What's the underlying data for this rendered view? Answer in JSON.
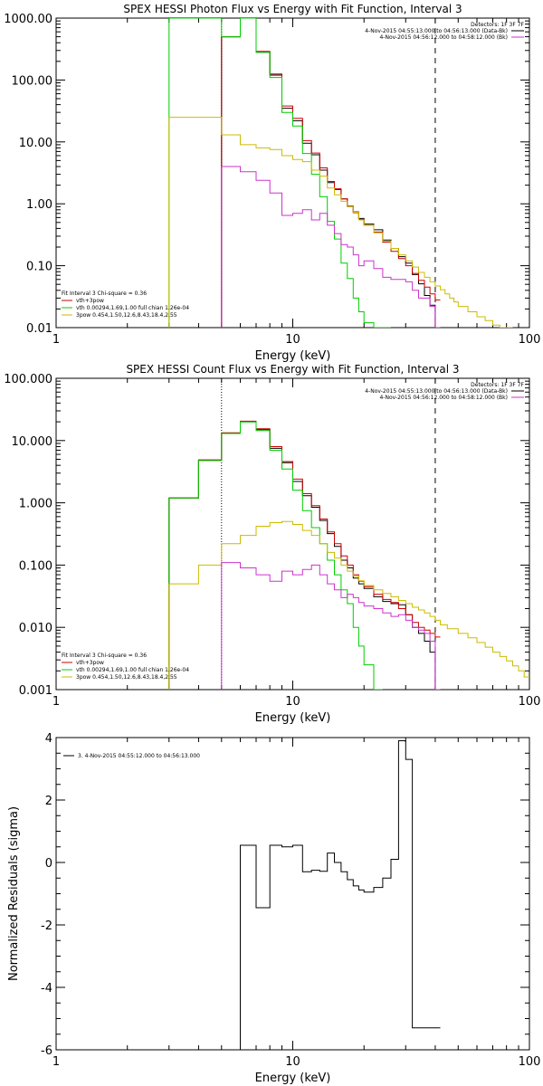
{
  "panels": [
    {
      "key": "photon",
      "type": "line",
      "title": "SPEX HESSI Photon Flux vs Energy with Fit Function, Interval 3",
      "xlabel": "Energy (keV)",
      "ylabel": "",
      "xscale": "log",
      "yscale": "log",
      "xlim": [
        1,
        100
      ],
      "ylim": [
        0.01,
        1000
      ],
      "xticks": [
        1,
        10,
        100
      ],
      "xtick_labels": [
        "1",
        "10",
        "100"
      ],
      "yticks": [
        0.01,
        0.1,
        1,
        10,
        100,
        1000
      ],
      "ytick_labels": [
        "0.01",
        "0.10",
        "1.00",
        "10.00",
        "100.00",
        "1000.00"
      ],
      "vlines": [
        {
          "x": 5.0,
          "style": "dotted",
          "color": "#000000"
        },
        {
          "x": 40.0,
          "style": "dashed",
          "color": "#000000"
        }
      ],
      "legend_tr": [
        "Detectors: 1F 3F 7F",
        "4-Nov-2015 04:55:13.000 to 04:56:13.000 (Data-Bk)",
        "4-Nov-2015 04:56:12.000 to 04:58:12.000 (Bk)"
      ],
      "legend_tr_colors": [
        "",
        "#000000",
        "#cc33cc"
      ],
      "legend_bl": [
        "Fit Interval 3   Chi-square = 0.36",
        "vth+3pow",
        "vth 0.00294,1.69,1.00  full chian 1.26e-04",
        "3pow 0.454,1.50,12.6,8.43,18.4,2.55"
      ],
      "legend_bl_colors": [
        "",
        "#cc0000",
        "#00cc00",
        "#ccbb00"
      ],
      "series": [
        {
          "name": "Data-Bk",
          "color": "#000000",
          "x": [
            5,
            6,
            7,
            8,
            9,
            10,
            11,
            12,
            13,
            14,
            15,
            16,
            17,
            18,
            19,
            20,
            22,
            24,
            26,
            28,
            30,
            32,
            34,
            36,
            38,
            40
          ],
          "y": [
            500,
            1000,
            280,
            120,
            35,
            22,
            9.5,
            6.2,
            3.5,
            2.2,
            1.7,
            1.2,
            0.92,
            0.74,
            0.58,
            0.47,
            0.38,
            0.26,
            0.19,
            0.14,
            0.11,
            0.072,
            0.051,
            0.033,
            0.023,
            0.01
          ]
        },
        {
          "name": "vth+3pow",
          "color": "#cc0000",
          "x": [
            5,
            6,
            7,
            8,
            9,
            10,
            11,
            12,
            13,
            14,
            15,
            16,
            17,
            18,
            19,
            20,
            22,
            24,
            26,
            28,
            30,
            32,
            34,
            36,
            38,
            40
          ],
          "y": [
            500,
            1000,
            290,
            125,
            38,
            24,
            10.5,
            6.6,
            3.8,
            2.3,
            1.75,
            1.2,
            0.9,
            0.72,
            0.56,
            0.45,
            0.35,
            0.24,
            0.17,
            0.13,
            0.1,
            0.075,
            0.058,
            0.045,
            0.035,
            0.028
          ]
        },
        {
          "name": "vth",
          "color": "#00cc00",
          "x": [
            3,
            5,
            6,
            7,
            8,
            9,
            10,
            11,
            12,
            13,
            14,
            15,
            16,
            17,
            18,
            19,
            20,
            22,
            24
          ],
          "y": [
            1000,
            500,
            1000,
            280,
            110,
            30,
            18,
            6.5,
            3.0,
            1.3,
            0.52,
            0.27,
            0.11,
            0.062,
            0.03,
            0.018,
            0.012,
            0.01,
            0.01
          ]
        },
        {
          "name": "3pow",
          "color": "#ccbb00",
          "x": [
            3,
            5,
            6,
            7,
            8,
            9,
            10,
            11,
            12,
            13,
            14,
            15,
            16,
            17,
            18,
            19,
            20,
            22,
            24,
            26,
            28,
            30,
            32,
            34,
            36,
            38,
            40,
            42,
            44,
            46,
            48,
            50,
            55,
            60,
            65,
            70,
            75,
            80
          ],
          "y": [
            25,
            13,
            9,
            8,
            7.5,
            6,
            5.2,
            4.8,
            3.5,
            2.8,
            1.8,
            1.4,
            1.1,
            0.9,
            0.73,
            0.55,
            0.45,
            0.34,
            0.25,
            0.19,
            0.15,
            0.12,
            0.095,
            0.078,
            0.065,
            0.055,
            0.047,
            0.041,
            0.035,
            0.03,
            0.026,
            0.022,
            0.018,
            0.015,
            0.013,
            0.011,
            0.01,
            0.01
          ]
        },
        {
          "name": "Bk",
          "color": "#cc33cc",
          "x": [
            5,
            6,
            7,
            8,
            9,
            10,
            11,
            12,
            13,
            14,
            15,
            16,
            17,
            18,
            19,
            20,
            22,
            24,
            26,
            28,
            30,
            32,
            34,
            36,
            38,
            40
          ],
          "y": [
            4,
            3.3,
            2.4,
            1.5,
            0.65,
            0.7,
            0.8,
            0.55,
            0.7,
            0.45,
            0.33,
            0.22,
            0.2,
            0.15,
            0.1,
            0.12,
            0.09,
            0.065,
            0.06,
            0.06,
            0.055,
            0.04,
            0.03,
            0.03,
            0.022,
            0.01
          ]
        }
      ]
    },
    {
      "key": "count",
      "type": "line",
      "title": "SPEX HESSI Count Flux vs Energy with Fit Function, Interval 3",
      "xlabel": "Energy (keV)",
      "ylabel": "",
      "xscale": "log",
      "yscale": "log",
      "xlim": [
        1,
        100
      ],
      "ylim": [
        0.001,
        100
      ],
      "xticks": [
        1,
        10,
        100
      ],
      "xtick_labels": [
        "1",
        "10",
        "100"
      ],
      "yticks": [
        0.001,
        0.01,
        0.1,
        1,
        10,
        100
      ],
      "ytick_labels": [
        "0.001",
        "0.010",
        "0.100",
        "1.000",
        "10.000",
        "100.000"
      ],
      "vlines": [
        {
          "x": 5.0,
          "style": "dotted",
          "color": "#000000"
        },
        {
          "x": 40.0,
          "style": "dashed",
          "color": "#000000"
        }
      ],
      "legend_tr": [
        "Detectors: 1F 3F 7F",
        "4-Nov-2015 04:55:13.000 to 04:56:13.000 (Data-Bk)",
        "4-Nov-2015 04:56:12.000 to 04:58:12.000 (Bk)"
      ],
      "legend_tr_colors": [
        "",
        "#000000",
        "#cc33cc"
      ],
      "legend_bl": [
        "Fit Interval 3   Chi-square = 0.36",
        "vth+3pow",
        "vth 0.00294,1.69,1.00  full chian 1.26e-04",
        "3pow 0.454,1.50,12.6,8.43,18.4,2.55"
      ],
      "legend_bl_colors": [
        "",
        "#cc0000",
        "#00cc00",
        "#ccbb00"
      ],
      "series": [
        {
          "name": "Data-Bk",
          "color": "#000000",
          "x": [
            3,
            4,
            5,
            6,
            7,
            8,
            9,
            10,
            11,
            12,
            13,
            14,
            15,
            16,
            17,
            18,
            19,
            20,
            22,
            24,
            26,
            28,
            30,
            32,
            34,
            36,
            38,
            40
          ],
          "y": [
            1.2,
            4.8,
            13,
            20,
            15,
            7.5,
            4.4,
            2.2,
            1.3,
            0.85,
            0.52,
            0.32,
            0.2,
            0.12,
            0.09,
            0.062,
            0.05,
            0.042,
            0.031,
            0.026,
            0.024,
            0.023,
            0.016,
            0.01,
            0.008,
            0.006,
            0.004,
            0.001
          ]
        },
        {
          "name": "vth+3pow",
          "color": "#cc0000",
          "x": [
            3,
            4,
            5,
            6,
            7,
            8,
            9,
            10,
            11,
            12,
            13,
            14,
            15,
            16,
            17,
            18,
            19,
            20,
            22,
            24,
            26,
            28,
            30,
            32,
            34,
            36,
            38,
            40
          ],
          "y": [
            1.2,
            4.9,
            13.3,
            20.5,
            15.5,
            8,
            4.6,
            2.4,
            1.4,
            0.9,
            0.55,
            0.34,
            0.22,
            0.14,
            0.1,
            0.07,
            0.055,
            0.045,
            0.034,
            0.028,
            0.025,
            0.02,
            0.016,
            0.012,
            0.01,
            0.009,
            0.008,
            0.007
          ]
        },
        {
          "name": "vth",
          "color": "#00cc00",
          "x": [
            3,
            4,
            5,
            6,
            7,
            8,
            9,
            10,
            11,
            12,
            13,
            14,
            15,
            16,
            17,
            18,
            19,
            20,
            22
          ],
          "y": [
            1.2,
            4.8,
            13,
            20,
            14.5,
            7,
            3.5,
            1.6,
            0.75,
            0.4,
            0.22,
            0.12,
            0.07,
            0.04,
            0.024,
            0.01,
            0.005,
            0.0025,
            0.001
          ]
        },
        {
          "name": "3pow",
          "color": "#ccbb00",
          "x": [
            3,
            4,
            5,
            6,
            7,
            8,
            9,
            10,
            11,
            12,
            13,
            14,
            15,
            16,
            17,
            18,
            19,
            20,
            22,
            24,
            26,
            28,
            30,
            32,
            34,
            36,
            38,
            40,
            42,
            45,
            50,
            55,
            60,
            65,
            70,
            75,
            80,
            85,
            90,
            95
          ],
          "y": [
            0.05,
            0.1,
            0.22,
            0.3,
            0.42,
            0.48,
            0.5,
            0.45,
            0.36,
            0.3,
            0.22,
            0.16,
            0.13,
            0.1,
            0.08,
            0.067,
            0.056,
            0.047,
            0.04,
            0.035,
            0.031,
            0.027,
            0.024,
            0.021,
            0.019,
            0.017,
            0.015,
            0.013,
            0.011,
            0.0095,
            0.008,
            0.0068,
            0.0057,
            0.0048,
            0.004,
            0.0034,
            0.0029,
            0.0024,
            0.002,
            0.0016
          ]
        },
        {
          "name": "Bk",
          "color": "#cc33cc",
          "x": [
            5,
            6,
            7,
            8,
            9,
            10,
            11,
            12,
            13,
            14,
            15,
            16,
            17,
            18,
            19,
            20,
            22,
            24,
            26,
            28,
            30,
            32,
            34,
            36,
            38,
            40
          ],
          "y": [
            0.11,
            0.09,
            0.07,
            0.055,
            0.08,
            0.07,
            0.085,
            0.1,
            0.07,
            0.05,
            0.04,
            0.03,
            0.034,
            0.03,
            0.025,
            0.022,
            0.02,
            0.017,
            0.015,
            0.016,
            0.013,
            0.01,
            0.009,
            0.008,
            0.006,
            0.001
          ]
        }
      ]
    },
    {
      "key": "resid",
      "type": "line",
      "title": "",
      "xlabel": "Energy (keV)",
      "ylabel": "Normalized Residuals (sigma)",
      "xscale": "log",
      "yscale": "linear",
      "xlim": [
        1,
        100
      ],
      "ylim": [
        -6,
        4
      ],
      "xticks": [
        1,
        10,
        100
      ],
      "xtick_labels": [
        "1",
        "10",
        "100"
      ],
      "yticks": [
        -6,
        -4,
        -2,
        0,
        2,
        4
      ],
      "ytick_labels": [
        "-6",
        "-4",
        "-2",
        "0",
        "2",
        "4"
      ],
      "vlines": [],
      "legend_tr": [],
      "legend_tr_colors": [],
      "legend_bl": [],
      "legend_bl_colors": [],
      "legend_tl": [
        "3.  4-Nov-2015 04:55:12.000 to 04:56:13.000"
      ],
      "series": [
        {
          "name": "3.  4-Nov-2015 04:55:12.000 to 04:56:13.000",
          "color": "#000000",
          "x": [
            5,
            6,
            7,
            8,
            9,
            10,
            11,
            12,
            13,
            14,
            15,
            16,
            17,
            18,
            19,
            20,
            22,
            24,
            26,
            28,
            30,
            32,
            34,
            36,
            38,
            40
          ],
          "y": [
            -6,
            0.55,
            -1.45,
            0.55,
            0.5,
            0.55,
            -0.3,
            -0.25,
            -0.28,
            0.3,
            0,
            -0.3,
            -0.55,
            -0.75,
            -0.88,
            -0.95,
            -0.8,
            -0.5,
            0.1,
            3.9,
            3.3,
            -5.3,
            -5.3,
            -5.3,
            -5.3,
            -5.3
          ]
        }
      ]
    }
  ]
}
